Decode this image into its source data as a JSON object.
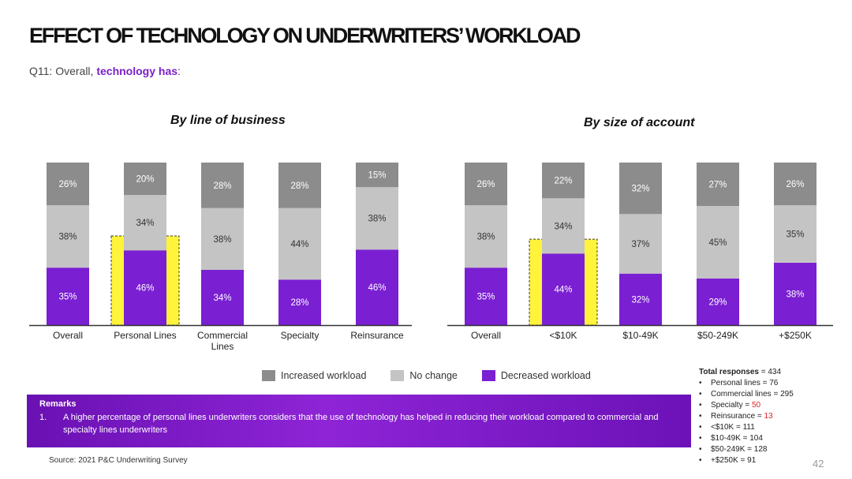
{
  "title": "EFFECT OF TECHNOLOGY ON UNDERWRITERS’ WORKLOAD",
  "question": {
    "prefix": "Q11: Overall, ",
    "highlight": "technology has",
    "suffix": ":"
  },
  "colors": {
    "increased": "#8c8c8c",
    "no_change": "#c4c4c4",
    "decreased": "#7a1fd2",
    "highlight_border": "#f2e600",
    "highlight_fill": "#fff33b"
  },
  "chart_data": [
    {
      "type": "bar",
      "stacked": true,
      "title": "By line of business",
      "categories": [
        "Overall",
        "Personal Lines",
        "Commercial Lines",
        "Specialty",
        "Reinsurance"
      ],
      "category_lines": [
        [
          "Overall"
        ],
        [
          "Personal Lines"
        ],
        [
          "Commercial",
          "Lines"
        ],
        [
          "Specialty"
        ],
        [
          "Reinsurance"
        ]
      ],
      "highlighted_category": "Personal Lines",
      "series": [
        {
          "name": "Decreased workload",
          "values": [
            35,
            46,
            34,
            28,
            46
          ]
        },
        {
          "name": "No change",
          "values": [
            38,
            34,
            38,
            44,
            38
          ]
        },
        {
          "name": "Increased workload",
          "values": [
            26,
            20,
            28,
            28,
            15
          ]
        }
      ],
      "ylim": [
        0,
        100
      ],
      "grid": false
    },
    {
      "type": "bar",
      "stacked": true,
      "title": "By size of account",
      "categories": [
        "Overall",
        "<$10K",
        "$10-49K",
        "$50-249K",
        "+$250K"
      ],
      "category_lines": [
        [
          "Overall"
        ],
        [
          "<$10K"
        ],
        [
          "$10-49K"
        ],
        [
          "$50-249K"
        ],
        [
          "+$250K"
        ]
      ],
      "highlighted_category": "<$10K",
      "series": [
        {
          "name": "Decreased workload",
          "values": [
            35,
            44,
            32,
            29,
            38
          ]
        },
        {
          "name": "No change",
          "values": [
            38,
            34,
            37,
            45,
            35
          ]
        },
        {
          "name": "Increased workload",
          "values": [
            26,
            22,
            32,
            27,
            26
          ]
        }
      ],
      "ylim": [
        0,
        100
      ],
      "grid": false
    }
  ],
  "legend": {
    "placement": "bottom-center",
    "items": [
      {
        "label": "Increased workload",
        "color": "#8c8c8c"
      },
      {
        "label": "No change",
        "color": "#c4c4c4"
      },
      {
        "label": "Decreased workload",
        "color": "#7a1fd2"
      }
    ]
  },
  "remarks": {
    "heading": "Remarks",
    "items": [
      {
        "num": "1.",
        "text": "A higher percentage of personal lines underwriters considers that the use of technology has helped in reducing their workload compared to commercial and specialty lines underwriters"
      }
    ]
  },
  "source": "Source: 2021 P&C Underwriting Survey",
  "totals": {
    "heading_bold": "Total responses",
    "heading_value": " = 434",
    "items": [
      {
        "label": "Personal lines = ",
        "value": "76",
        "emphasis": false
      },
      {
        "label": "Commercial lines = ",
        "value": "295",
        "emphasis": false
      },
      {
        "label": "Specialty = ",
        "value": "50",
        "emphasis": true
      },
      {
        "label": "Reinsurance = ",
        "value": "13",
        "emphasis": true
      },
      {
        "label": "<$10K = ",
        "value": "111",
        "emphasis": false
      },
      {
        "label": "$10-49K = ",
        "value": "104",
        "emphasis": false
      },
      {
        "label": "$50-249K = ",
        "value": "128",
        "emphasis": false
      },
      {
        "label": "+$250K = ",
        "value": "91",
        "emphasis": false
      }
    ]
  },
  "page_number": "42"
}
